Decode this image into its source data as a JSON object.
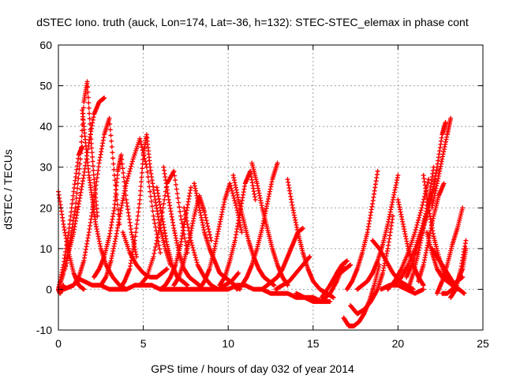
{
  "chart_data": {
    "type": "scatter",
    "title": "dSTEC Iono. truth (auck, Lon=174, Lat=-36, h=132): STEC-STEC_elemax in phase cont",
    "xlabel": "GPS time / hours of day 032 of year 2014",
    "ylabel": "dSTEC  / TECUs",
    "xlim": [
      0,
      25
    ],
    "ylim": [
      -10,
      60
    ],
    "xticks": [
      0,
      5,
      10,
      15,
      20,
      25
    ],
    "yticks": [
      -10,
      0,
      10,
      20,
      30,
      40,
      50,
      60
    ],
    "grid": true,
    "marker": "+",
    "color": "#ff0000",
    "series": [
      {
        "x": [
          0.0,
          0.3,
          0.6,
          0.9,
          1.2,
          1.5
        ],
        "y": [
          24,
          16,
          9,
          4,
          1,
          0
        ]
      },
      {
        "x": [
          0.0,
          0.3,
          0.6,
          0.9,
          1.2,
          1.5,
          1.8,
          2.1,
          2.4,
          2.7
        ],
        "y": [
          0,
          4,
          9,
          14,
          21,
          28,
          36,
          43,
          46,
          47
        ]
      },
      {
        "x": [
          0.3,
          0.6,
          0.9,
          1.2,
          1.5,
          1.8,
          2.1,
          2.4,
          2.7,
          3.0,
          3.3,
          3.6
        ],
        "y": [
          0,
          0.5,
          1,
          3,
          7,
          14,
          22,
          31,
          38,
          42,
          28,
          16
        ]
      },
      {
        "x": [
          0.0,
          0.3,
          0.6,
          0.9,
          1.2,
          1.4
        ],
        "y": [
          0,
          6,
          14,
          24,
          33,
          35
        ]
      },
      {
        "x": [
          0.4,
          0.7,
          1.0,
          1.3,
          1.5,
          1.7,
          1.9,
          2.1,
          2.3
        ],
        "y": [
          5,
          12,
          20,
          32,
          46,
          51,
          38,
          27,
          18
        ]
      },
      {
        "x": [
          1.4,
          1.6,
          1.8,
          2.0,
          2.2,
          2.5,
          2.8,
          3.2,
          3.6,
          4.0
        ],
        "y": [
          44,
          36,
          28,
          22,
          16,
          10,
          6,
          3,
          1,
          0
        ]
      },
      {
        "x": [
          2.1,
          2.4,
          2.7,
          3.0,
          3.3,
          3.5,
          3.7,
          4.0,
          4.3,
          4.6
        ],
        "y": [
          3,
          5,
          8,
          13,
          20,
          29,
          33,
          22,
          14,
          8
        ]
      },
      {
        "x": [
          2.5,
          2.8,
          3.1,
          3.4,
          3.7,
          4.0,
          4.4,
          4.8,
          5.2,
          5.6,
          6.0
        ],
        "y": [
          1,
          3,
          7,
          13,
          20,
          26,
          32,
          37,
          30,
          18,
          9
        ]
      },
      {
        "x": [
          3.6,
          3.9,
          4.2,
          4.5,
          4.8,
          5.0,
          5.2,
          5.4,
          5.7,
          6.0,
          6.3,
          6.6
        ],
        "y": [
          0,
          2,
          5,
          12,
          22,
          33,
          38,
          30,
          22,
          15,
          10,
          6
        ]
      },
      {
        "x": [
          3.8,
          4.2,
          4.6,
          5.0,
          5.4,
          5.8,
          6.1,
          6.4
        ],
        "y": [
          14,
          9,
          6,
          4,
          3,
          3,
          4,
          5
        ]
      },
      {
        "x": [
          4.8,
          5.2,
          5.6,
          6.0,
          6.4,
          6.8,
          7.2,
          7.6
        ],
        "y": [
          1,
          3,
          8,
          16,
          26,
          29,
          18,
          9
        ]
      },
      {
        "x": [
          5.8,
          6.1,
          6.4,
          6.7,
          7.0,
          7.3,
          7.6
        ],
        "y": [
          25,
          18,
          11,
          6,
          3,
          2,
          1
        ]
      },
      {
        "x": [
          6.2,
          6.5,
          6.8,
          7.1,
          7.4,
          7.7,
          8.0,
          8.3
        ],
        "y": [
          30,
          22,
          15,
          9,
          5,
          3,
          2,
          1
        ]
      },
      {
        "x": [
          6.0,
          6.3,
          6.6,
          6.9,
          7.2,
          7.5,
          7.8
        ],
        "y": [
          0,
          1,
          3,
          6,
          11,
          18,
          25
        ]
      },
      {
        "x": [
          6.8,
          7.1,
          7.4,
          7.7,
          8.0,
          8.3,
          8.6,
          9.0
        ],
        "y": [
          1,
          3,
          7,
          12,
          18,
          23,
          19,
          12
        ]
      },
      {
        "x": [
          7.4,
          7.8,
          8.2,
          8.6,
          9.0,
          9.4,
          9.8,
          10.2,
          10.6
        ],
        "y": [
          20,
          12,
          6,
          3,
          1,
          0,
          1,
          2,
          4
        ]
      },
      {
        "x": [
          8.0,
          8.3,
          8.6,
          8.9,
          9.2,
          9.5,
          9.8,
          10.1,
          10.4,
          10.7
        ],
        "y": [
          26,
          20,
          14,
          10,
          7,
          4,
          3,
          2,
          1,
          0
        ]
      },
      {
        "x": [
          8.3,
          8.6,
          8.9,
          9.2,
          9.5,
          9.8,
          10.1,
          10.5,
          10.8
        ],
        "y": [
          0,
          2,
          5,
          10,
          16,
          22,
          26,
          20,
          14
        ]
      },
      {
        "x": [
          9.5,
          9.8,
          10.1,
          10.4,
          10.7,
          11.0,
          11.3,
          11.6
        ],
        "y": [
          1,
          3,
          7,
          12,
          19,
          26,
          29,
          22
        ]
      },
      {
        "x": [
          10.3,
          10.6,
          10.9,
          11.2,
          11.5,
          11.8,
          12.1,
          12.4,
          12.7
        ],
        "y": [
          28,
          22,
          17,
          12,
          8,
          5,
          3,
          2,
          1
        ]
      },
      {
        "x": [
          10.5,
          10.8,
          11.1,
          11.4,
          11.7,
          12.0,
          12.3,
          12.6,
          12.9
        ],
        "y": [
          0,
          1,
          3,
          6,
          10,
          15,
          21,
          27,
          31
        ]
      },
      {
        "x": [
          11.4,
          11.7,
          12.0,
          12.3,
          12.6,
          12.9,
          13.2,
          13.5
        ],
        "y": [
          31,
          26,
          20,
          15,
          10,
          6,
          3,
          1
        ]
      },
      {
        "x": [
          12.0,
          12.3,
          12.6,
          12.9,
          13.2,
          13.5,
          13.8,
          14.1,
          14.4
        ],
        "y": [
          0,
          1,
          2,
          3,
          5,
          8,
          11,
          14,
          15
        ]
      },
      {
        "x": [
          12.8,
          13.2,
          13.6,
          14.0,
          14.4,
          14.8
        ],
        "y": [
          0,
          1,
          2,
          4,
          6,
          8
        ]
      },
      {
        "x": [
          13.5,
          13.8,
          14.1,
          14.4,
          14.7,
          15.0,
          15.4,
          15.8,
          16.2
        ],
        "y": [
          27,
          20,
          14,
          9,
          5,
          2,
          0,
          -1,
          -2
        ]
      },
      {
        "x": [
          14.0,
          14.5,
          15.0,
          15.5,
          16.0,
          16.4,
          16.8
        ],
        "y": [
          -1,
          -2,
          -3,
          -3,
          -1,
          2,
          6
        ]
      },
      {
        "x": [
          15.5,
          16.0,
          16.4,
          16.7,
          17.0
        ],
        "y": [
          -2,
          1,
          4,
          6,
          7
        ]
      },
      {
        "x": [
          16.0,
          16.3,
          16.6,
          16.9,
          17.2
        ],
        "y": [
          1,
          3,
          4,
          5,
          6
        ]
      },
      {
        "x": [
          16.8,
          17.1,
          17.4,
          17.7,
          18.0,
          18.3,
          18.6,
          18.9
        ],
        "y": [
          -7,
          -9,
          -9,
          -8,
          -6,
          -3,
          1,
          6
        ]
      },
      {
        "x": [
          17.2,
          17.6,
          18.0,
          18.4,
          18.8,
          19.1,
          19.4,
          19.7
        ],
        "y": [
          -4,
          -6,
          -5,
          -3,
          0,
          4,
          10,
          18
        ]
      },
      {
        "x": [
          17.0,
          17.3,
          17.6,
          17.9,
          18.2,
          18.5,
          18.8
        ],
        "y": [
          0,
          2,
          5,
          9,
          14,
          21,
          29
        ]
      },
      {
        "x": [
          17.6,
          17.9,
          18.2,
          18.5,
          18.8,
          19.1,
          19.4,
          19.7,
          20.0
        ],
        "y": [
          0,
          1,
          2,
          4,
          7,
          11,
          16,
          22,
          28
        ]
      },
      {
        "x": [
          18.5,
          18.9,
          19.3,
          19.7,
          20.1,
          20.5,
          20.9
        ],
        "y": [
          12,
          10,
          7,
          4,
          2,
          1,
          0
        ]
      },
      {
        "x": [
          19.4,
          19.8,
          20.2,
          20.6,
          21.0,
          21.4,
          21.8
        ],
        "y": [
          0,
          2,
          5,
          9,
          14,
          20,
          27
        ]
      },
      {
        "x": [
          19.8,
          20.2,
          20.6,
          21.0,
          21.4,
          21.8,
          22.2
        ],
        "y": [
          1,
          3,
          6,
          10,
          15,
          21,
          27
        ]
      },
      {
        "x": [
          20.0,
          20.3,
          20.6,
          20.9,
          21.2,
          21.5
        ],
        "y": [
          22,
          16,
          10,
          6,
          3,
          1
        ]
      },
      {
        "x": [
          20.6,
          20.9,
          21.2,
          21.5,
          21.8,
          22.1
        ],
        "y": [
          0,
          4,
          9,
          15,
          22,
          30
        ]
      },
      {
        "x": [
          20.5,
          20.8,
          21.1,
          21.4,
          21.7,
          22.0,
          22.3,
          22.6,
          22.8
        ],
        "y": [
          3,
          6,
          10,
          14,
          18,
          23,
          30,
          38,
          41
        ]
      },
      {
        "x": [
          21.2,
          21.5,
          21.8,
          22.1,
          22.4,
          22.7
        ],
        "y": [
          2,
          6,
          12,
          18,
          23,
          26
        ]
      },
      {
        "x": [
          21.5,
          21.8,
          22.1,
          22.4,
          22.7,
          23.0,
          23.3,
          23.6,
          23.9
        ],
        "y": [
          28,
          20,
          13,
          8,
          4,
          2,
          1,
          0,
          -1
        ]
      },
      {
        "x": [
          21.7,
          22.0,
          22.3,
          22.6,
          22.9,
          23.2,
          23.5,
          23.8
        ],
        "y": [
          14,
          9,
          5,
          3,
          2,
          1,
          2,
          3
        ]
      },
      {
        "x": [
          22.3,
          22.6,
          22.9,
          23.2,
          23.5,
          23.8
        ],
        "y": [
          -1,
          2,
          6,
          11,
          15,
          20
        ]
      },
      {
        "x": [
          22.0,
          22.3,
          22.6,
          22.9,
          23.2,
          23.5
        ],
        "y": [
          10,
          8,
          6,
          4,
          2,
          0
        ]
      },
      {
        "x": [
          22.0,
          22.3,
          22.6,
          22.9,
          23.1
        ],
        "y": [
          20,
          26,
          32,
          38,
          42
        ]
      },
      {
        "x": [
          22.6,
          22.9,
          23.2,
          23.5,
          23.8,
          24.0
        ],
        "y": [
          -1,
          -1,
          0,
          2,
          5,
          10
        ]
      },
      {
        "x": [
          23.1,
          23.4,
          23.7,
          24.0
        ],
        "y": [
          -2,
          0,
          5,
          12
        ]
      },
      {
        "x": [
          19.0,
          19.5,
          20.0,
          20.5,
          21.0,
          21.5
        ],
        "y": [
          0,
          1,
          1,
          0,
          -1,
          0
        ]
      },
      {
        "x": [
          1.0,
          1.5,
          2.0,
          2.5,
          3.0,
          3.5,
          4.0,
          4.5,
          5.0,
          5.5,
          6.0,
          6.5,
          7.0,
          7.5,
          8.0,
          8.5,
          9.0
        ],
        "y": [
          3,
          2,
          1,
          1,
          0,
          0,
          0,
          1,
          1,
          1,
          0,
          0,
          0,
          0,
          0,
          0,
          0
        ]
      },
      {
        "x": [
          9.0,
          9.5,
          10.0,
          10.5,
          11.0,
          11.5,
          12.0,
          12.5,
          13.0,
          13.5,
          14.0,
          14.5,
          15.0,
          15.5,
          16.0
        ],
        "y": [
          0,
          0,
          0,
          1,
          1,
          0,
          0,
          -1,
          -1,
          -1,
          -2,
          -2,
          -2,
          -3,
          -3
        ]
      },
      {
        "x": [
          0.0,
          0.1,
          0.2,
          0.3
        ],
        "y": [
          0,
          -1,
          0,
          1
        ]
      }
    ]
  }
}
